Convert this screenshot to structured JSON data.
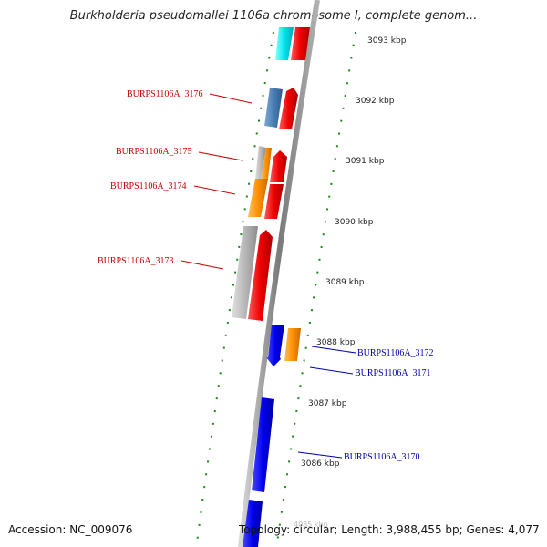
{
  "title": "Burkholderia pseudomallei 1106a chromosome I, complete genom...",
  "footer": {
    "accession": "Accession: NC_009076",
    "summary": "Topology: circular; Length: 3,988,455 bp; Genes: 4,077"
  },
  "ghost_tick": "4085 kbp",
  "scale_ticks": [
    "3093 kbp",
    "3092 kbp",
    "3091 kbp",
    "3090 kbp",
    "3089 kbp",
    "3088 kbp",
    "3087 kbp",
    "3086 kbp"
  ],
  "genes_left": [
    "BURPS1106A_3176",
    "BURPS1106A_3175",
    "BURPS1106A_3174",
    "BURPS1106A_3173"
  ],
  "genes_right": [
    "BURPS1106A_3172",
    "BURPS1106A_3171",
    "BURPS1106A_3170"
  ],
  "colors": {
    "cyan": "#00e5ee",
    "red": "#ee0000",
    "steelblue": "#4a7fb5",
    "gray": "#b8b8b8",
    "orange": "#ff9000",
    "blue": "#0000ee",
    "dotted_green": "#1a8a1a",
    "left_label": "#cc0000",
    "right_label": "#0000aa",
    "backbone": "#888888"
  }
}
